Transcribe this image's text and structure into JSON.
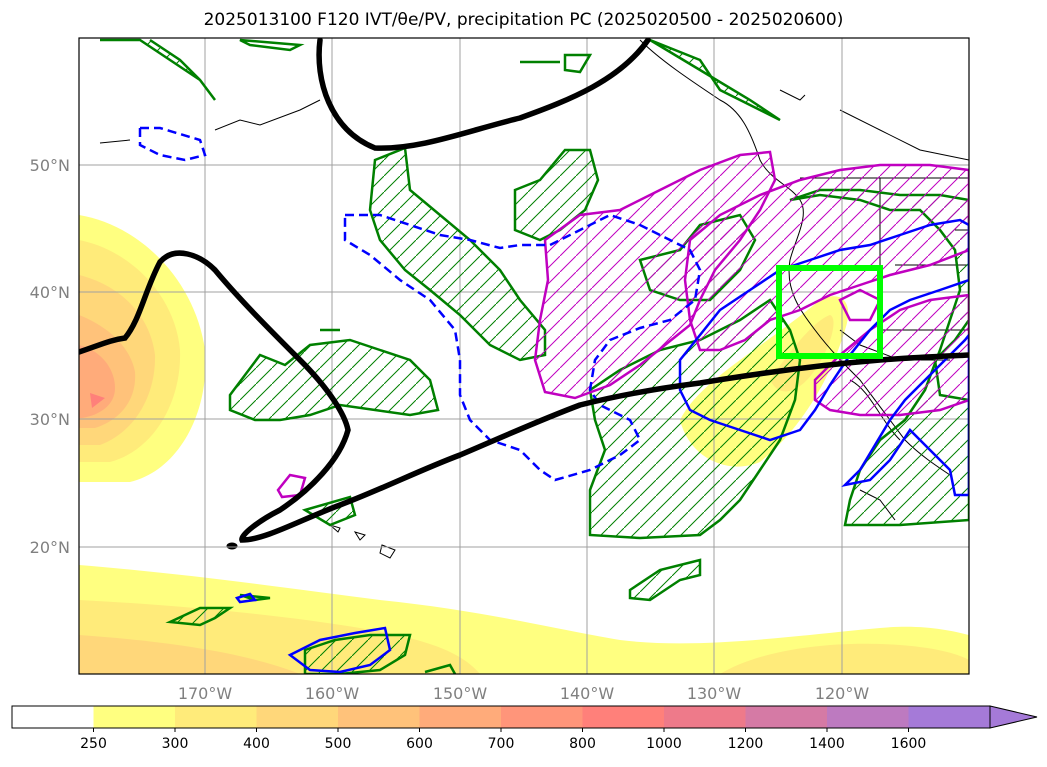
{
  "title": "2025013100 F120 IVT/θe/PV, precipitation PC (2025020500 - 2025020600)",
  "map": {
    "lat_labels": [
      "50°N",
      "40°N",
      "30°N",
      "20°N"
    ],
    "lon_labels": [
      "170°W",
      "160°W",
      "150°W",
      "140°W",
      "130°W",
      "120°W"
    ]
  },
  "colorbar": {
    "levels": [
      "250",
      "300",
      "400",
      "500",
      "600",
      "700",
      "800",
      "1000",
      "1200",
      "1400",
      "1600"
    ],
    "colors": [
      "#ffffff",
      "#ffff80",
      "#ffeb7a",
      "#ffd77a",
      "#ffc27a",
      "#ffab7a",
      "#ff957a",
      "#ff807a",
      "#ee7a8a",
      "#d57aa5",
      "#bd7ac0",
      "#a57ad8"
    ]
  },
  "colors": {
    "pv_contour": "#000000",
    "theta_e_contour": "#0000ff",
    "precip_contour": "#008000",
    "second_field_contour": "#c000c0",
    "target_box": "#00ff00"
  }
}
